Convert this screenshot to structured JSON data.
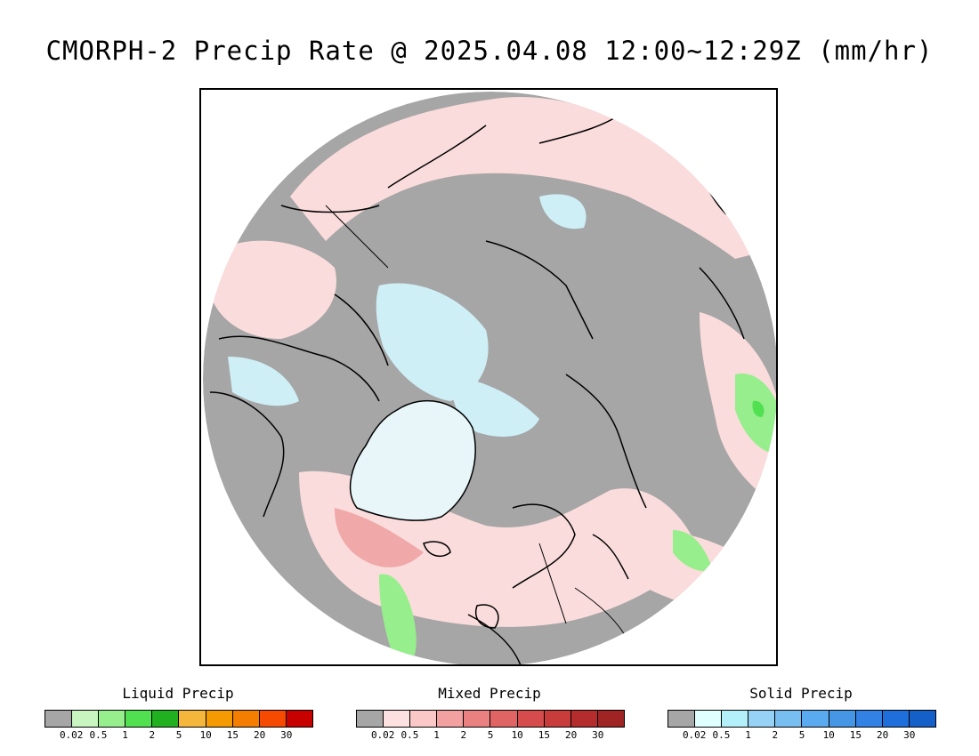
{
  "title": "CMORPH-2 Precip Rate @ 2025.04.08 12:00~12:29Z (mm/hr)",
  "map": {
    "projection": "north-polar-stereographic",
    "background_color": "#a6a6a6",
    "features": [
      "coastlines",
      "country-borders"
    ]
  },
  "legends": [
    {
      "id": "liquid",
      "title": "Liquid Precip",
      "colors": [
        "#a6a6a6",
        "#c8f5c0",
        "#96ee8c",
        "#50e050",
        "#20b020",
        "#f5b63c",
        "#f59a00",
        "#f57d00",
        "#f54a00",
        "#c80000"
      ],
      "ticks": [
        "0.02",
        "0.5",
        "1",
        "2",
        "5",
        "10",
        "15",
        "20",
        "30"
      ]
    },
    {
      "id": "mixed",
      "title": "Mixed Precip",
      "colors": [
        "#a6a6a6",
        "#fde0e0",
        "#fbc8c8",
        "#f2a0a0",
        "#ea8080",
        "#e06464",
        "#d64c4c",
        "#c83c3c",
        "#b42c2c",
        "#a02424"
      ],
      "ticks": [
        "0.02",
        "0.5",
        "1",
        "2",
        "5",
        "10",
        "15",
        "20",
        "30"
      ]
    },
    {
      "id": "solid",
      "title": "Solid Precip",
      "colors": [
        "#a6a6a6",
        "#e0ffff",
        "#b4f0fa",
        "#96d2f5",
        "#78bef0",
        "#5aaaf0",
        "#4696e6",
        "#3282e6",
        "#1e6edc",
        "#1460c8"
      ],
      "ticks": [
        "0.02",
        "0.5",
        "1",
        "2",
        "5",
        "10",
        "15",
        "20",
        "30"
      ]
    }
  ]
}
